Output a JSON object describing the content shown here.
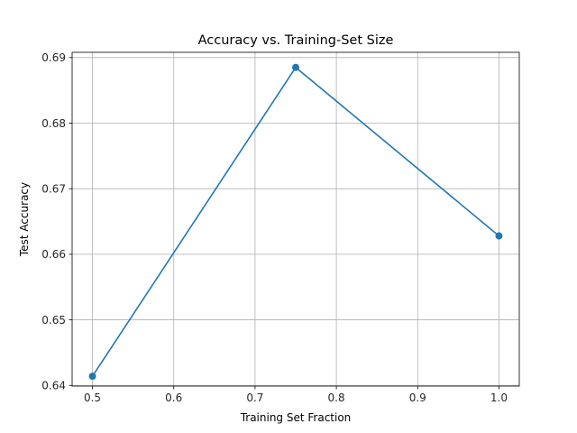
{
  "chart_data": {
    "type": "line",
    "title": "Accuracy vs. Training-Set Size",
    "xlabel": "Training Set Fraction",
    "ylabel": "Test Accuracy",
    "xlim": [
      0.475,
      1.025
    ],
    "ylim": [
      0.6399,
      0.6908
    ],
    "grid": true,
    "x_ticks": [
      0.5,
      0.6,
      0.7,
      0.8,
      0.9,
      1.0
    ],
    "x_tick_labels": [
      "0.5",
      "0.6",
      "0.7",
      "0.8",
      "0.9",
      "1.0"
    ],
    "y_ticks": [
      0.64,
      0.65,
      0.66,
      0.67,
      0.68,
      0.69
    ],
    "y_tick_labels": [
      "0.64",
      "0.65",
      "0.66",
      "0.67",
      "0.68",
      "0.69"
    ],
    "series": [
      {
        "color": "#1f77b4",
        "marker": "circle",
        "x": [
          0.5,
          0.75,
          1.0
        ],
        "y": [
          0.6414,
          0.6885,
          0.6628
        ]
      }
    ]
  }
}
